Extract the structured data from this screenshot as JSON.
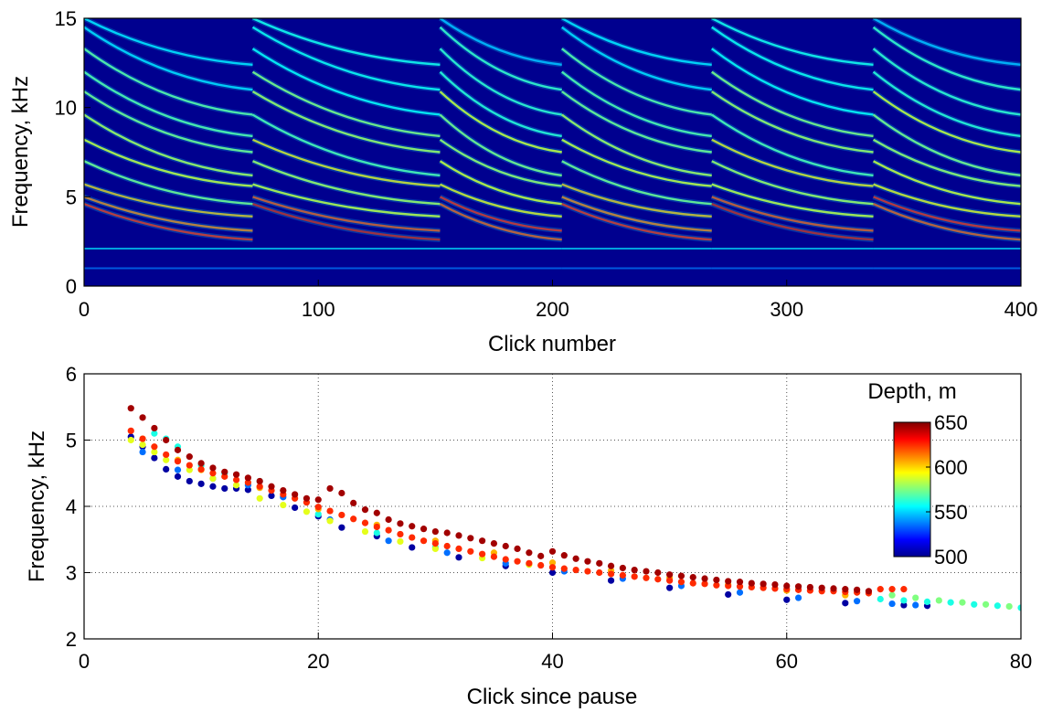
{
  "chart_data": [
    {
      "type": "heatmap",
      "title": "",
      "xlabel": "Click number",
      "ylabel": "Frequency, kHz",
      "xlim": [
        0,
        400
      ],
      "ylim": [
        0,
        15
      ],
      "xticks": [
        "0",
        "100",
        "200",
        "300",
        "400"
      ],
      "yticks": [
        "0",
        "5",
        "10",
        "15"
      ],
      "colormap": "jet",
      "background_color": "#00008f",
      "segment_boundaries": [
        0,
        72,
        152,
        204,
        268,
        337,
        400
      ],
      "bands": [
        {
          "f0": 5.0,
          "f1": 3.1,
          "intensity": 0.9
        },
        {
          "f0": 4.6,
          "f1": 2.6,
          "intensity": 0.95
        },
        {
          "f0": 5.7,
          "f1": 3.9,
          "intensity": 0.7
        },
        {
          "f0": 7.0,
          "f1": 4.6,
          "intensity": 0.6
        },
        {
          "f0": 8.2,
          "f1": 5.6,
          "intensity": 0.65
        },
        {
          "f0": 9.6,
          "f1": 6.2,
          "intensity": 0.55
        },
        {
          "f0": 10.9,
          "f1": 7.5,
          "intensity": 0.6
        },
        {
          "f0": 12.0,
          "f1": 8.4,
          "intensity": 0.5
        },
        {
          "f0": 13.3,
          "f1": 9.6,
          "intensity": 0.45
        },
        {
          "f0": 14.5,
          "f1": 11.0,
          "intensity": 0.4
        },
        {
          "f0": 15.0,
          "f1": 12.4,
          "intensity": 0.35
        }
      ],
      "low_bands": [
        {
          "f": 2.1,
          "intensity": 0.35
        },
        {
          "f": 1.0,
          "intensity": 0.25
        }
      ]
    },
    {
      "type": "scatter",
      "title": "",
      "xlabel": "Click since pause",
      "ylabel": "Frequency, kHz",
      "xlim": [
        0,
        80
      ],
      "ylim": [
        2,
        6
      ],
      "xticks": [
        "0",
        "20",
        "40",
        "60",
        "80"
      ],
      "yticks": [
        "2",
        "3",
        "4",
        "5",
        "6"
      ],
      "grid": true,
      "colorbar": {
        "label": "Depth, m",
        "min": 500,
        "max": 650,
        "ticks": [
          "650",
          "600",
          "550",
          "500"
        ],
        "colormap": "jet",
        "placement": "right"
      },
      "series": [
        {
          "depth": 505,
          "x": [
            4,
            5,
            6,
            7,
            8,
            9,
            10,
            11,
            12,
            13,
            14,
            16,
            18,
            20,
            22,
            25,
            28,
            32,
            36,
            40,
            45,
            50,
            55,
            60,
            65,
            70,
            72
          ],
          "y": [
            5.05,
            4.9,
            4.73,
            4.56,
            4.45,
            4.38,
            4.34,
            4.3,
            4.27,
            4.27,
            4.25,
            4.16,
            3.98,
            3.85,
            3.68,
            3.55,
            3.38,
            3.23,
            3.1,
            3.0,
            2.88,
            2.77,
            2.67,
            2.59,
            2.54,
            2.51,
            2.5
          ]
        },
        {
          "depth": 535,
          "x": [
            5,
            8,
            11,
            14,
            17,
            21,
            26,
            31,
            36,
            41,
            46,
            51,
            56,
            61,
            66,
            69,
            71
          ],
          "y": [
            4.82,
            4.55,
            4.42,
            4.32,
            4.14,
            3.8,
            3.48,
            3.3,
            3.14,
            3.02,
            2.91,
            2.8,
            2.7,
            2.62,
            2.57,
            2.53,
            2.51
          ]
        },
        {
          "depth": 560,
          "x": [
            6,
            7,
            8,
            10,
            12,
            15,
            20,
            25,
            30,
            68,
            70,
            72,
            74,
            76,
            78,
            80
          ],
          "y": [
            5.1,
            5.02,
            4.9,
            4.62,
            4.5,
            4.38,
            3.88,
            3.6,
            3.38,
            2.6,
            2.58,
            2.56,
            2.55,
            2.52,
            2.5,
            2.47
          ]
        },
        {
          "depth": 575,
          "x": [
            69,
            71,
            73,
            75,
            77,
            79
          ],
          "y": [
            2.66,
            2.62,
            2.58,
            2.55,
            2.52,
            2.49
          ]
        },
        {
          "depth": 590,
          "x": [
            4,
            5,
            6,
            7,
            9,
            11,
            13,
            15,
            17,
            19,
            21,
            24,
            27,
            30,
            34,
            38
          ],
          "y": [
            5.0,
            4.93,
            4.82,
            4.7,
            4.55,
            4.42,
            4.32,
            4.12,
            4.02,
            3.92,
            3.78,
            3.62,
            3.47,
            3.36,
            3.22,
            3.12
          ]
        },
        {
          "depth": 605,
          "x": [
            5,
            8,
            10,
            15,
            20,
            25,
            30,
            35,
            40,
            45,
            50,
            55,
            60,
            65
          ],
          "y": [
            5.02,
            4.7,
            4.55,
            4.28,
            3.96,
            3.72,
            3.48,
            3.3,
            3.15,
            3.03,
            2.92,
            2.82,
            2.73,
            2.66
          ]
        },
        {
          "depth": 625,
          "x": [
            4,
            5,
            6,
            7,
            8,
            9,
            10,
            11,
            12,
            13,
            14,
            15,
            16,
            17,
            18,
            19,
            20,
            21,
            22,
            23,
            24,
            25,
            26,
            27,
            28,
            29,
            30,
            31,
            32,
            33,
            34,
            35,
            36,
            37,
            38,
            39,
            40,
            41,
            42,
            43,
            44,
            45,
            46,
            47,
            48,
            49,
            50,
            51,
            52,
            53,
            54,
            55,
            56,
            57,
            58,
            59,
            60,
            61,
            62,
            63,
            64,
            65,
            66,
            67,
            68,
            69,
            70
          ],
          "y": [
            5.14,
            5.02,
            4.9,
            4.78,
            4.68,
            4.62,
            4.56,
            4.5,
            4.45,
            4.4,
            4.36,
            4.3,
            4.24,
            4.18,
            4.12,
            4.06,
            3.99,
            3.93,
            3.87,
            3.81,
            3.75,
            3.69,
            3.64,
            3.58,
            3.53,
            3.48,
            3.44,
            3.4,
            3.36,
            3.32,
            3.28,
            3.24,
            3.2,
            3.17,
            3.14,
            3.11,
            3.08,
            3.06,
            3.04,
            3.02,
            3.0,
            2.98,
            2.96,
            2.94,
            2.92,
            2.9,
            2.88,
            2.86,
            2.84,
            2.83,
            2.81,
            2.8,
            2.79,
            2.78,
            2.77,
            2.76,
            2.75,
            2.74,
            2.73,
            2.72,
            2.72,
            2.71,
            2.7,
            2.69,
            2.75,
            2.75,
            2.75
          ]
        },
        {
          "depth": 645,
          "x": [
            4,
            5,
            6,
            7,
            8,
            9,
            10,
            11,
            12,
            13,
            14,
            15,
            16,
            17,
            18,
            19,
            20,
            21,
            22,
            23,
            24,
            25,
            26,
            27,
            28,
            29,
            30,
            31,
            32,
            33,
            34,
            35,
            36,
            37,
            38,
            39,
            40,
            41,
            42,
            43,
            44,
            45,
            46,
            47,
            48,
            49,
            50,
            51,
            52,
            53,
            54,
            55,
            56,
            57,
            58,
            59,
            60,
            61,
            62,
            63,
            64,
            65,
            66,
            67
          ],
          "y": [
            5.48,
            5.34,
            5.18,
            5.0,
            4.85,
            4.75,
            4.65,
            4.58,
            4.52,
            4.48,
            4.43,
            4.38,
            4.3,
            4.24,
            4.18,
            4.12,
            4.1,
            4.27,
            4.2,
            4.05,
            3.95,
            3.9,
            3.8,
            3.74,
            3.7,
            3.66,
            3.62,
            3.6,
            3.56,
            3.52,
            3.48,
            3.44,
            3.4,
            3.36,
            3.3,
            3.25,
            3.32,
            3.26,
            3.21,
            3.17,
            3.14,
            3.1,
            3.07,
            3.04,
            3.02,
            3.0,
            2.97,
            2.95,
            2.93,
            2.91,
            2.89,
            2.87,
            2.86,
            2.84,
            2.83,
            2.82,
            2.8,
            2.79,
            2.78,
            2.77,
            2.76,
            2.75,
            2.74,
            2.72
          ]
        }
      ]
    }
  ]
}
